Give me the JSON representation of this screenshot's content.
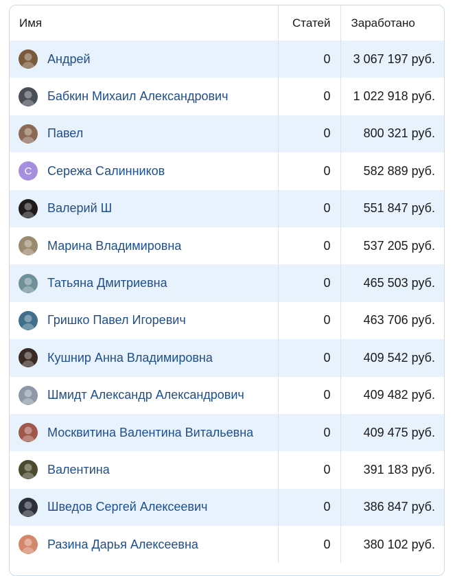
{
  "table": {
    "headers": {
      "name": "Имя",
      "articles": "Статей",
      "earned": "Заработано"
    },
    "rows": [
      {
        "name": "Андрей",
        "articles": "0",
        "earned": "3 067 197 руб.",
        "avatar": {
          "icon": "user-photo-icon",
          "color": "#7a5a3c"
        }
      },
      {
        "name": "Бабкин Михаил Александрович",
        "articles": "0",
        "earned": "1 022 918 руб.",
        "avatar": {
          "icon": "user-photo-icon",
          "color": "#4a4f57"
        }
      },
      {
        "name": "Павел",
        "articles": "0",
        "earned": "800 321 руб.",
        "avatar": {
          "icon": "user-photo-icon",
          "color": "#8a6a55"
        }
      },
      {
        "name": "Сережа Салинников",
        "articles": "0",
        "earned": "582 889 руб.",
        "avatar": {
          "icon": "initial-letter-icon",
          "letter": "С",
          "color": "#a78fe0"
        }
      },
      {
        "name": "Валерий Ш",
        "articles": "0",
        "earned": "551 847 руб.",
        "avatar": {
          "icon": "user-photo-icon",
          "color": "#1e1b1a"
        }
      },
      {
        "name": "Марина Владимировна",
        "articles": "0",
        "earned": "537 205 руб.",
        "avatar": {
          "icon": "user-photo-icon",
          "color": "#9b8a6d"
        }
      },
      {
        "name": "Татьяна Дмитриевна",
        "articles": "0",
        "earned": "465 503 руб.",
        "avatar": {
          "icon": "user-photo-icon",
          "color": "#6f8f99"
        }
      },
      {
        "name": "Гришко Павел Игоревич",
        "articles": "0",
        "earned": "463 706 руб.",
        "avatar": {
          "icon": "user-photo-icon",
          "color": "#3f6f8a"
        }
      },
      {
        "name": "Кушнир Анна Владимировна",
        "articles": "0",
        "earned": "409 542 руб.",
        "avatar": {
          "icon": "user-photo-icon",
          "color": "#3a2a24"
        }
      },
      {
        "name": "Шмидт Александр Александрович",
        "articles": "0",
        "earned": "409 482 руб.",
        "avatar": {
          "icon": "user-photo-icon",
          "color": "#8c98a8"
        }
      },
      {
        "name": "Москвитина Валентина Витальевна",
        "articles": "0",
        "earned": "409 475 руб.",
        "avatar": {
          "icon": "user-photo-icon",
          "color": "#a0574a"
        }
      },
      {
        "name": "Валентина",
        "articles": "0",
        "earned": "391 183 руб.",
        "avatar": {
          "icon": "user-photo-icon",
          "color": "#4c4a2e"
        }
      },
      {
        "name": "Шведов Сергей Алексеевич",
        "articles": "0",
        "earned": "386 847 руб.",
        "avatar": {
          "icon": "user-photo-icon",
          "color": "#2b2f3a"
        }
      },
      {
        "name": "Разина Дарья Алексеевна",
        "articles": "0",
        "earned": "380 102 руб.",
        "avatar": {
          "icon": "user-photo-icon",
          "color": "#d4876a"
        }
      }
    ]
  },
  "colors": {
    "link": "#1f4e8c",
    "row_stripe": "#e8f2fc",
    "border": "#c6dcef"
  }
}
